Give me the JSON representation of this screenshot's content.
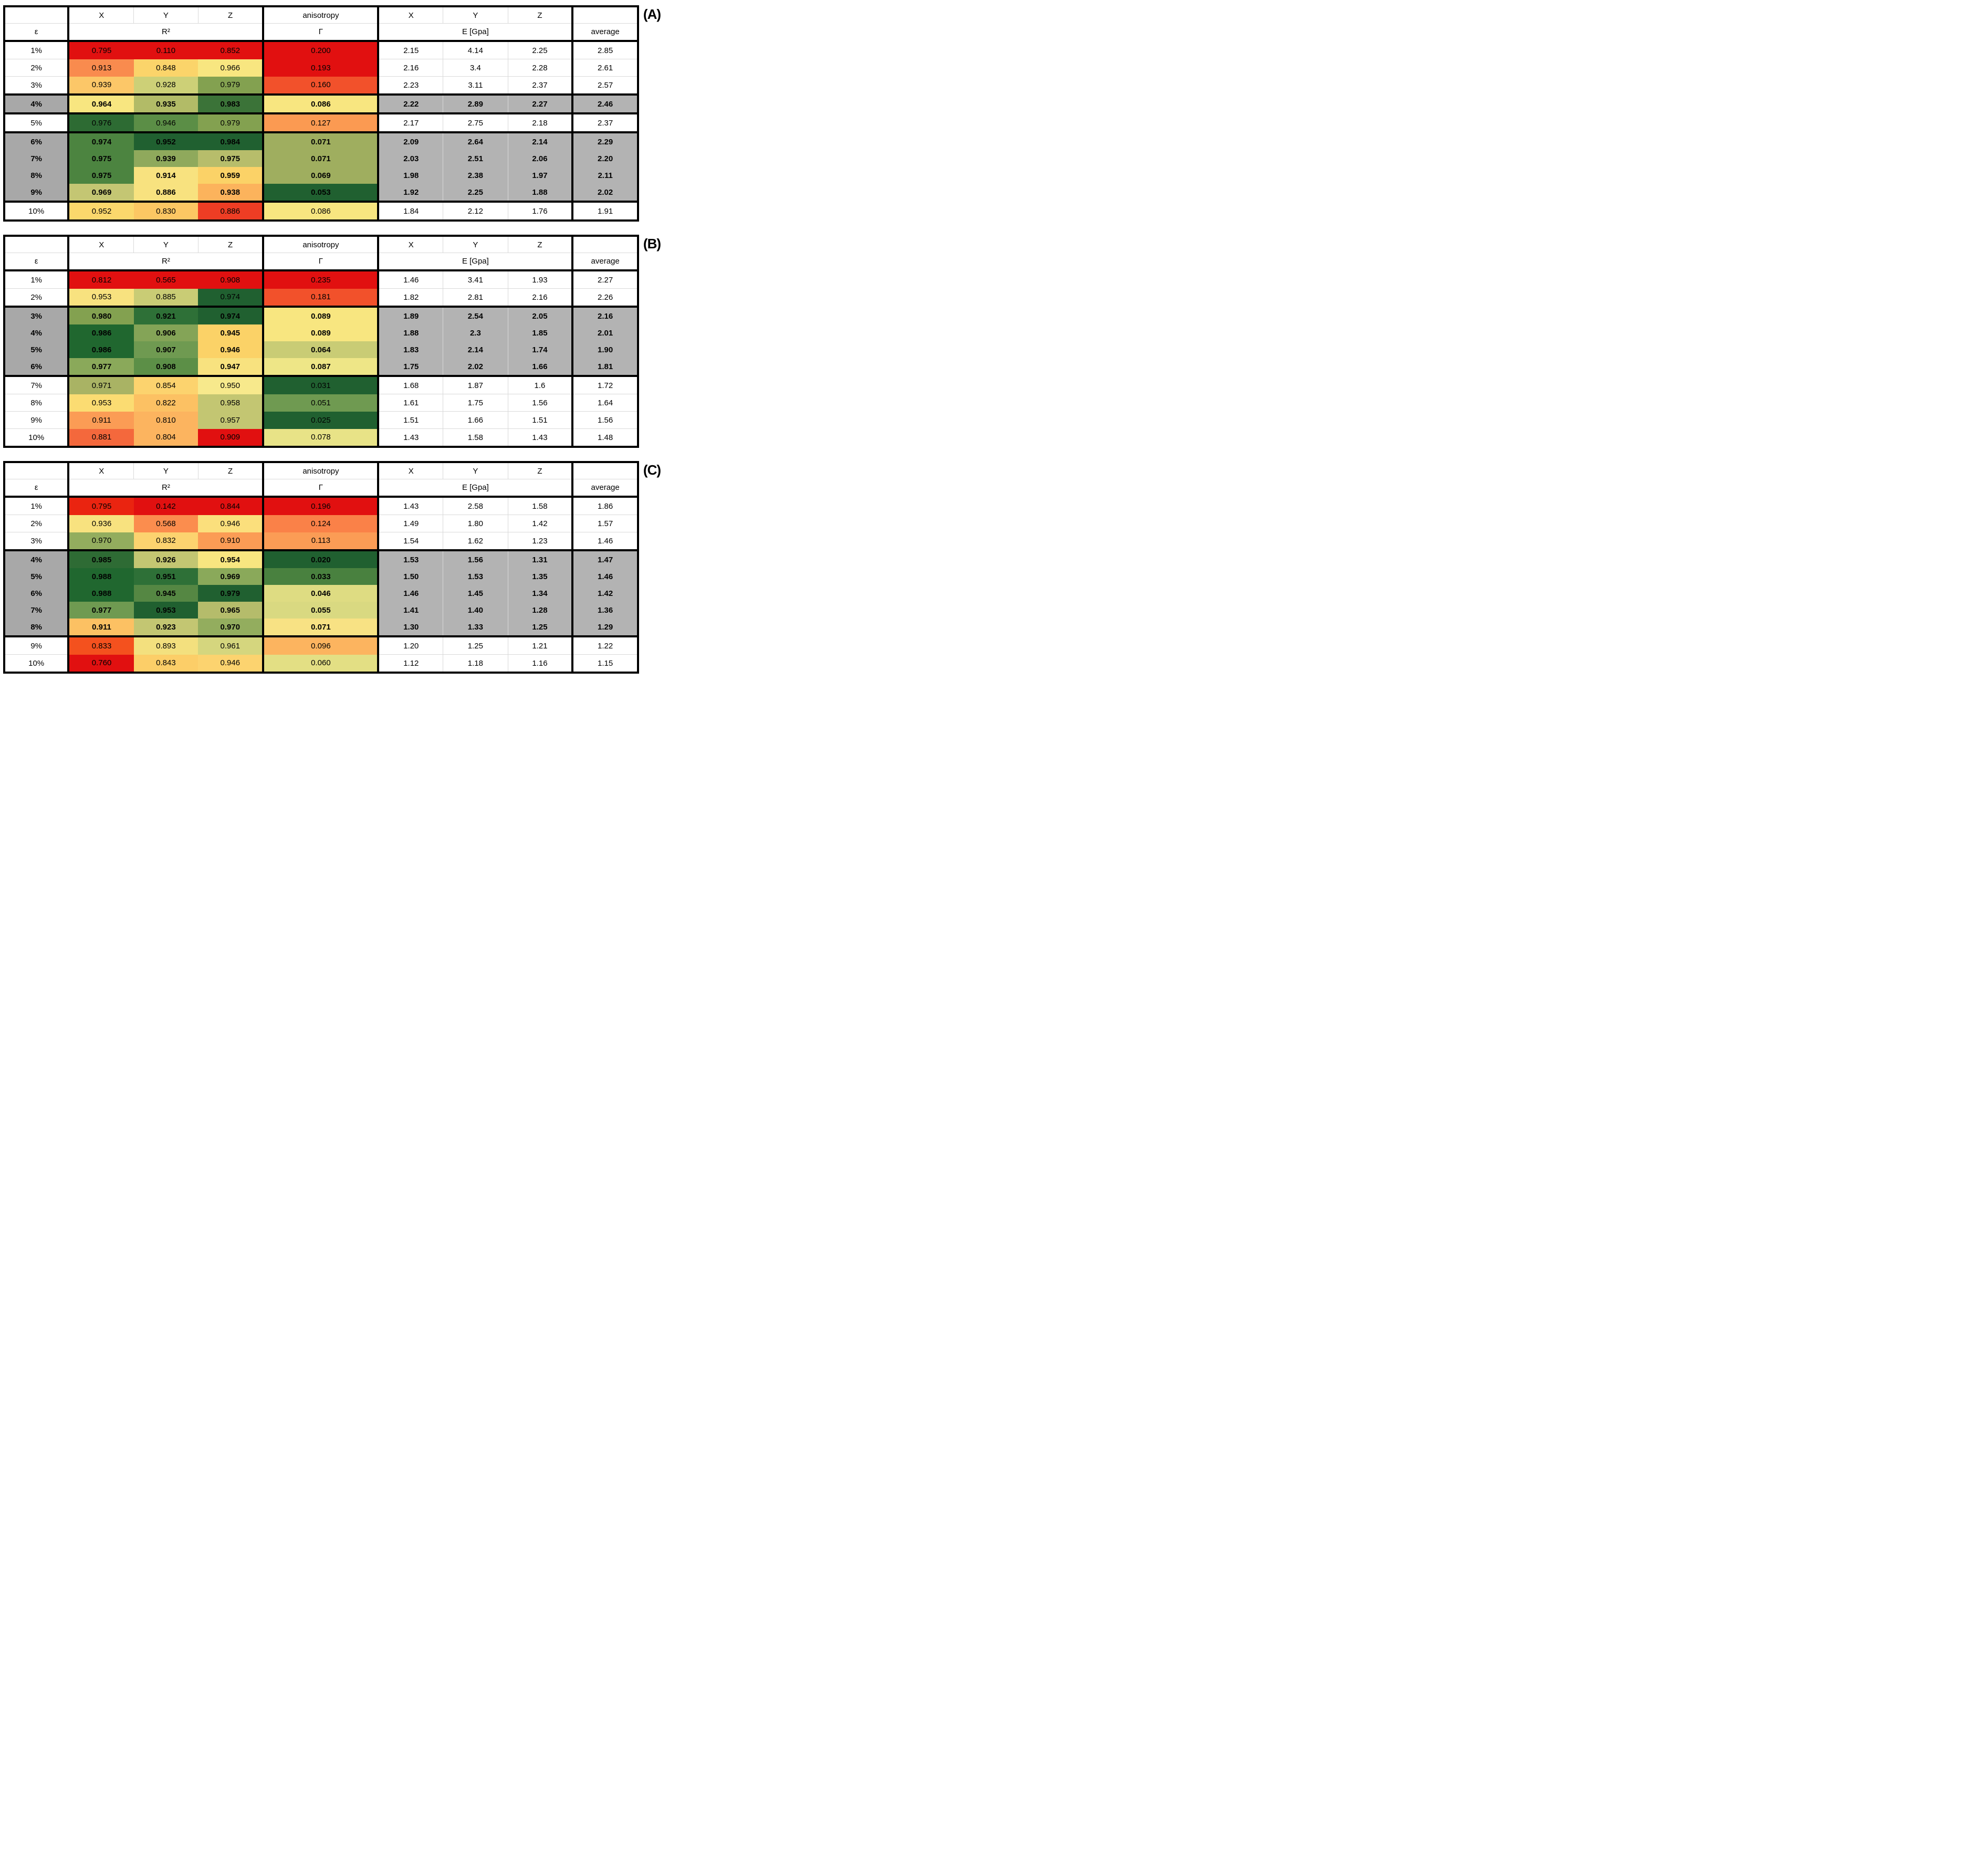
{
  "header": {
    "x": "X",
    "y": "Y",
    "z": "Z",
    "anisotropy": "anisotropy",
    "epsilon": "ε",
    "r2": "R²",
    "gamma": "Γ",
    "e_gpa": "E [Gpa]",
    "average": "average"
  },
  "style": {
    "hl_eps_bg": "#a8a8a8",
    "hl_bg": "#b3b3b3",
    "white_bg": "#ffffff",
    "border_color": "#000000",
    "gridline_color": "#d9d9d9"
  },
  "tables": [
    {
      "label": "(A)",
      "rows": [
        {
          "eps": "1%",
          "hl": false,
          "sep": false,
          "r2": [
            {
              "v": "0.795",
              "c": "#e11010"
            },
            {
              "v": "0.110",
              "c": "#e11010"
            },
            {
              "v": "0.852",
              "c": "#e11010"
            }
          ],
          "gamma": {
            "v": "0.200",
            "c": "#e11010"
          },
          "e": [
            "2.15",
            "4.14",
            "2.25"
          ],
          "avg": "2.85"
        },
        {
          "eps": "2%",
          "hl": false,
          "sep": false,
          "r2": [
            {
              "v": "0.913",
              "c": "#f98b4e"
            },
            {
              "v": "0.848",
              "c": "#fbd46a"
            },
            {
              "v": "0.966",
              "c": "#f8e680"
            }
          ],
          "gamma": {
            "v": "0.193",
            "c": "#e11010"
          },
          "e": [
            "2.16",
            "3.4",
            "2.28"
          ],
          "avg": "2.61"
        },
        {
          "eps": "3%",
          "hl": false,
          "sep": false,
          "r2": [
            {
              "v": "0.939",
              "c": "#fcc768"
            },
            {
              "v": "0.928",
              "c": "#cdd077"
            },
            {
              "v": "0.979",
              "c": "#83a150"
            }
          ],
          "gamma": {
            "v": "0.160",
            "c": "#f2512b"
          },
          "e": [
            "2.23",
            "3.11",
            "2.37"
          ],
          "avg": "2.57"
        },
        {
          "eps": "4%",
          "hl": true,
          "sep": true,
          "r2": [
            {
              "v": "0.964",
              "c": "#f8e680"
            },
            {
              "v": "0.935",
              "c": "#b2bb67"
            },
            {
              "v": "0.983",
              "c": "#3b7338"
            }
          ],
          "gamma": {
            "v": "0.086",
            "c": "#f8e680"
          },
          "e": [
            "2.22",
            "2.89",
            "2.27"
          ],
          "avg": "2.46"
        },
        {
          "eps": "5%",
          "hl": false,
          "sep": true,
          "r2": [
            {
              "v": "0.976",
              "c": "#2d6b33"
            },
            {
              "v": "0.946",
              "c": "#5b8e46"
            },
            {
              "v": "0.979",
              "c": "#83a150"
            }
          ],
          "gamma": {
            "v": "0.127",
            "c": "#fb9a52"
          },
          "e": [
            "2.17",
            "2.75",
            "2.18"
          ],
          "avg": "2.37"
        },
        {
          "eps": "6%",
          "hl": true,
          "sep": true,
          "r2": [
            {
              "v": "0.974",
              "c": "#4c8440"
            },
            {
              "v": "0.952",
              "c": "#206030"
            },
            {
              "v": "0.984",
              "c": "#206030"
            }
          ],
          "gamma": {
            "v": "0.071",
            "c": "#9fae5f"
          },
          "e": [
            "2.09",
            "2.64",
            "2.14"
          ],
          "avg": "2.29"
        },
        {
          "eps": "7%",
          "hl": true,
          "sep": false,
          "r2": [
            {
              "v": "0.975",
              "c": "#4c8440"
            },
            {
              "v": "0.939",
              "c": "#8fa95c"
            },
            {
              "v": "0.975",
              "c": "#b7bd6b"
            }
          ],
          "gamma": {
            "v": "0.071",
            "c": "#9fae5f"
          },
          "e": [
            "2.03",
            "2.51",
            "2.06"
          ],
          "avg": "2.20"
        },
        {
          "eps": "8%",
          "hl": true,
          "sep": false,
          "r2": [
            {
              "v": "0.975",
              "c": "#4c8440"
            },
            {
              "v": "0.914",
              "c": "#f8e27f"
            },
            {
              "v": "0.959",
              "c": "#fbd267"
            }
          ],
          "gamma": {
            "v": "0.069",
            "c": "#9fae5f"
          },
          "e": [
            "1.98",
            "2.38",
            "1.97"
          ],
          "avg": "2.11"
        },
        {
          "eps": "9%",
          "hl": true,
          "sep": false,
          "r2": [
            {
              "v": "0.969",
              "c": "#c4c673"
            },
            {
              "v": "0.886",
              "c": "#f8e27f"
            },
            {
              "v": "0.938",
              "c": "#fcb35c"
            }
          ],
          "gamma": {
            "v": "0.053",
            "c": "#206030"
          },
          "e": [
            "1.92",
            "2.25",
            "1.88"
          ],
          "avg": "2.02"
        },
        {
          "eps": "10%",
          "hl": false,
          "sep": true,
          "r2": [
            {
              "v": "0.952",
              "c": "#fbd86c"
            },
            {
              "v": "0.830",
              "c": "#fcc763"
            },
            {
              "v": "0.886",
              "c": "#ee3d24"
            }
          ],
          "gamma": {
            "v": "0.086",
            "c": "#f8e680"
          },
          "e": [
            "1.84",
            "2.12",
            "1.76"
          ],
          "avg": "1.91"
        }
      ]
    },
    {
      "label": "(B)",
      "rows": [
        {
          "eps": "1%",
          "hl": false,
          "sep": false,
          "r2": [
            {
              "v": "0.812",
              "c": "#e11010"
            },
            {
              "v": "0.565",
              "c": "#e11010"
            },
            {
              "v": "0.908",
              "c": "#e11010"
            }
          ],
          "gamma": {
            "v": "0.235",
            "c": "#e11010"
          },
          "e": [
            "1.46",
            "3.41",
            "1.93"
          ],
          "avg": "2.27"
        },
        {
          "eps": "2%",
          "hl": false,
          "sep": false,
          "r2": [
            {
              "v": "0.953",
              "c": "#f8e27f"
            },
            {
              "v": "0.885",
              "c": "#c9cc75"
            },
            {
              "v": "0.974",
              "c": "#206030"
            }
          ],
          "gamma": {
            "v": "0.181",
            "c": "#f2512b"
          },
          "e": [
            "1.82",
            "2.81",
            "2.16"
          ],
          "avg": "2.26"
        },
        {
          "eps": "3%",
          "hl": true,
          "sep": true,
          "r2": [
            {
              "v": "0.980",
              "c": "#83a150"
            },
            {
              "v": "0.921",
              "c": "#2e7037"
            },
            {
              "v": "0.974",
              "c": "#206030"
            }
          ],
          "gamma": {
            "v": "0.089",
            "c": "#f8e680"
          },
          "e": [
            "1.89",
            "2.54",
            "2.05"
          ],
          "avg": "2.16"
        },
        {
          "eps": "4%",
          "hl": true,
          "sep": false,
          "r2": [
            {
              "v": "0.986",
              "c": "#20672f"
            },
            {
              "v": "0.906",
              "c": "#84a457"
            },
            {
              "v": "0.945",
              "c": "#fbd267"
            }
          ],
          "gamma": {
            "v": "0.089",
            "c": "#f8e680"
          },
          "e": [
            "1.88",
            "2.3",
            "1.85"
          ],
          "avg": "2.01"
        },
        {
          "eps": "5%",
          "hl": true,
          "sep": false,
          "r2": [
            {
              "v": "0.986",
              "c": "#20672f"
            },
            {
              "v": "0.907",
              "c": "#6f9a51"
            },
            {
              "v": "0.946",
              "c": "#fbd267"
            }
          ],
          "gamma": {
            "v": "0.064",
            "c": "#c9cc75"
          },
          "e": [
            "1.83",
            "2.14",
            "1.74"
          ],
          "avg": "1.90"
        },
        {
          "eps": "6%",
          "hl": true,
          "sep": false,
          "r2": [
            {
              "v": "0.977",
              "c": "#8aa95a"
            },
            {
              "v": "0.908",
              "c": "#5c8f47"
            },
            {
              "v": "0.947",
              "c": "#f8e27f"
            }
          ],
          "gamma": {
            "v": "0.087",
            "c": "#eee687"
          },
          "e": [
            "1.75",
            "2.02",
            "1.66"
          ],
          "avg": "1.81"
        },
        {
          "eps": "7%",
          "hl": false,
          "sep": true,
          "r2": [
            {
              "v": "0.971",
              "c": "#a9b364"
            },
            {
              "v": "0.854",
              "c": "#fcd36e"
            },
            {
              "v": "0.950",
              "c": "#f7e98c"
            }
          ],
          "gamma": {
            "v": "0.031",
            "c": "#206030"
          },
          "e": [
            "1.68",
            "1.87",
            "1.6"
          ],
          "avg": "1.72"
        },
        {
          "eps": "8%",
          "hl": false,
          "sep": false,
          "r2": [
            {
              "v": "0.953",
              "c": "#fbdc72"
            },
            {
              "v": "0.822",
              "c": "#fcc163"
            },
            {
              "v": "0.958",
              "c": "#c3c672"
            }
          ],
          "gamma": {
            "v": "0.051",
            "c": "#6f9a51"
          },
          "e": [
            "1.61",
            "1.75",
            "1.56"
          ],
          "avg": "1.64"
        },
        {
          "eps": "9%",
          "hl": false,
          "sep": false,
          "r2": [
            {
              "v": "0.911",
              "c": "#fb9c55"
            },
            {
              "v": "0.810",
              "c": "#fcb45f"
            },
            {
              "v": "0.957",
              "c": "#c3c672"
            }
          ],
          "gamma": {
            "v": "0.025",
            "c": "#206030"
          },
          "e": [
            "1.51",
            "1.66",
            "1.51"
          ],
          "avg": "1.56"
        },
        {
          "eps": "10%",
          "hl": false,
          "sep": false,
          "r2": [
            {
              "v": "0.881",
              "c": "#f4683c"
            },
            {
              "v": "0.804",
              "c": "#fcb45f"
            },
            {
              "v": "0.909",
              "c": "#e11010"
            }
          ],
          "gamma": {
            "v": "0.078",
            "c": "#e8e387"
          },
          "e": [
            "1.43",
            "1.58",
            "1.43"
          ],
          "avg": "1.48"
        }
      ]
    },
    {
      "label": "(C)",
      "rows": [
        {
          "eps": "1%",
          "hl": false,
          "sep": false,
          "r2": [
            {
              "v": "0.795",
              "c": "#ea2410"
            },
            {
              "v": "0.142",
              "c": "#e11010"
            },
            {
              "v": "0.844",
              "c": "#e11010"
            }
          ],
          "gamma": {
            "v": "0.196",
            "c": "#e11010"
          },
          "e": [
            "1.43",
            "2.58",
            "1.58"
          ],
          "avg": "1.86"
        },
        {
          "eps": "2%",
          "hl": false,
          "sep": false,
          "r2": [
            {
              "v": "0.936",
              "c": "#f8e27f"
            },
            {
              "v": "0.568",
              "c": "#fb8d4e"
            },
            {
              "v": "0.946",
              "c": "#fbdf7c"
            }
          ],
          "gamma": {
            "v": "0.124",
            "c": "#fa8148"
          },
          "e": [
            "1.49",
            "1.80",
            "1.42"
          ],
          "avg": "1.57"
        },
        {
          "eps": "3%",
          "hl": false,
          "sep": false,
          "r2": [
            {
              "v": "0.970",
              "c": "#93ad5e"
            },
            {
              "v": "0.832",
              "c": "#fcd36f"
            },
            {
              "v": "0.910",
              "c": "#fb9c55"
            }
          ],
          "gamma": {
            "v": "0.113",
            "c": "#fb9c55"
          },
          "e": [
            "1.54",
            "1.62",
            "1.23"
          ],
          "avg": "1.46"
        },
        {
          "eps": "4%",
          "hl": true,
          "sep": true,
          "r2": [
            {
              "v": "0.985",
              "c": "#2e6b34"
            },
            {
              "v": "0.926",
              "c": "#c3c672"
            },
            {
              "v": "0.954",
              "c": "#f8e680"
            }
          ],
          "gamma": {
            "v": "0.020",
            "c": "#206030"
          },
          "e": [
            "1.53",
            "1.56",
            "1.31"
          ],
          "avg": "1.47"
        },
        {
          "eps": "5%",
          "hl": true,
          "sep": false,
          "r2": [
            {
              "v": "0.988",
              "c": "#20672f"
            },
            {
              "v": "0.951",
              "c": "#2e7037"
            },
            {
              "v": "0.969",
              "c": "#8aa95a"
            }
          ],
          "gamma": {
            "v": "0.033",
            "c": "#49813f"
          },
          "e": [
            "1.50",
            "1.53",
            "1.35"
          ],
          "avg": "1.46"
        },
        {
          "eps": "6%",
          "hl": true,
          "sep": false,
          "r2": [
            {
              "v": "0.988",
              "c": "#20672f"
            },
            {
              "v": "0.945",
              "c": "#558743"
            },
            {
              "v": "0.979",
              "c": "#206030"
            }
          ],
          "gamma": {
            "v": "0.046",
            "c": "#dedc82"
          },
          "e": [
            "1.46",
            "1.45",
            "1.34"
          ],
          "avg": "1.42"
        },
        {
          "eps": "7%",
          "hl": true,
          "sep": false,
          "r2": [
            {
              "v": "0.977",
              "c": "#6f9a51"
            },
            {
              "v": "0.953",
              "c": "#206030"
            },
            {
              "v": "0.965",
              "c": "#b5bc6b"
            }
          ],
          "gamma": {
            "v": "0.055",
            "c": "#d9d981"
          },
          "e": [
            "1.41",
            "1.40",
            "1.28"
          ],
          "avg": "1.36"
        },
        {
          "eps": "8%",
          "hl": true,
          "sep": false,
          "r2": [
            {
              "v": "0.911",
              "c": "#fcc163"
            },
            {
              "v": "0.923",
              "c": "#c3c672"
            },
            {
              "v": "0.970",
              "c": "#93ad5e"
            }
          ],
          "gamma": {
            "v": "0.071",
            "c": "#f8e284"
          },
          "e": [
            "1.30",
            "1.33",
            "1.25"
          ],
          "avg": "1.29"
        },
        {
          "eps": "9%",
          "hl": false,
          "sep": true,
          "r2": [
            {
              "v": "0.833",
              "c": "#f4511e"
            },
            {
              "v": "0.893",
              "c": "#f3e07e"
            },
            {
              "v": "0.961",
              "c": "#d5d67e"
            }
          ],
          "gamma": {
            "v": "0.096",
            "c": "#fcb45f"
          },
          "e": [
            "1.20",
            "1.25",
            "1.21"
          ],
          "avg": "1.22"
        },
        {
          "eps": "10%",
          "hl": false,
          "sep": false,
          "r2": [
            {
              "v": "0.760",
              "c": "#e11010"
            },
            {
              "v": "0.843",
              "c": "#fcce68"
            },
            {
              "v": "0.946",
              "c": "#fcd36f"
            }
          ],
          "gamma": {
            "v": "0.060",
            "c": "#e3df84"
          },
          "e": [
            "1.12",
            "1.18",
            "1.16"
          ],
          "avg": "1.15"
        }
      ]
    }
  ]
}
